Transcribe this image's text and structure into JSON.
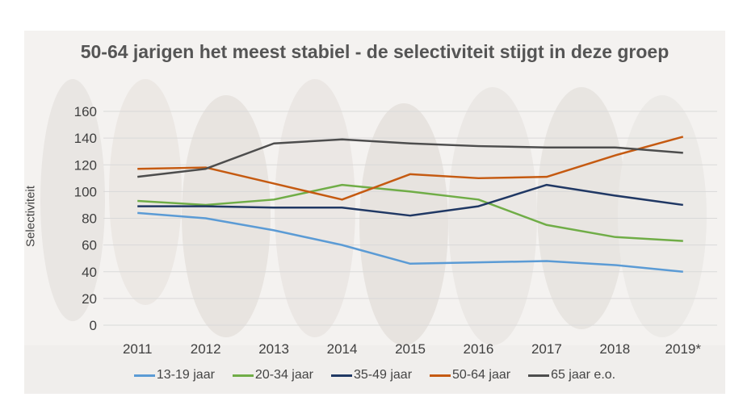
{
  "chart_data": {
    "type": "line",
    "title": "50-64 jarigen het meest stabiel - de selectiviteit stijgt in deze groep",
    "ylabel": "Selectiviteit",
    "xlabel": "",
    "categories": [
      "2011",
      "2012",
      "2013",
      "2014",
      "2015",
      "2016",
      "2017",
      "2018",
      "2019*"
    ],
    "ylim": [
      0,
      160
    ],
    "yticks": [
      0,
      20,
      40,
      60,
      80,
      100,
      120,
      140,
      160
    ],
    "grid": true,
    "legend_position": "bottom",
    "series": [
      {
        "name": "13-19 jaar",
        "color": "#5b9bd5",
        "values": [
          84,
          80,
          71,
          60,
          46,
          47,
          48,
          45,
          40
        ]
      },
      {
        "name": "20-34 jaar",
        "color": "#70ad47",
        "values": [
          93,
          90,
          94,
          105,
          100,
          94,
          75,
          66,
          63
        ]
      },
      {
        "name": "35-49 jaar",
        "color": "#203864",
        "values": [
          89,
          89,
          88,
          88,
          82,
          89,
          105,
          97,
          90
        ]
      },
      {
        "name": "50-64 jaar",
        "color": "#c55a11",
        "values": [
          117,
          118,
          106,
          94,
          113,
          110,
          111,
          127,
          141
        ]
      },
      {
        "name": "65 jaar e.o.",
        "color": "#4d4d4d",
        "values": [
          111,
          117,
          136,
          139,
          136,
          134,
          133,
          133,
          129
        ]
      }
    ]
  }
}
